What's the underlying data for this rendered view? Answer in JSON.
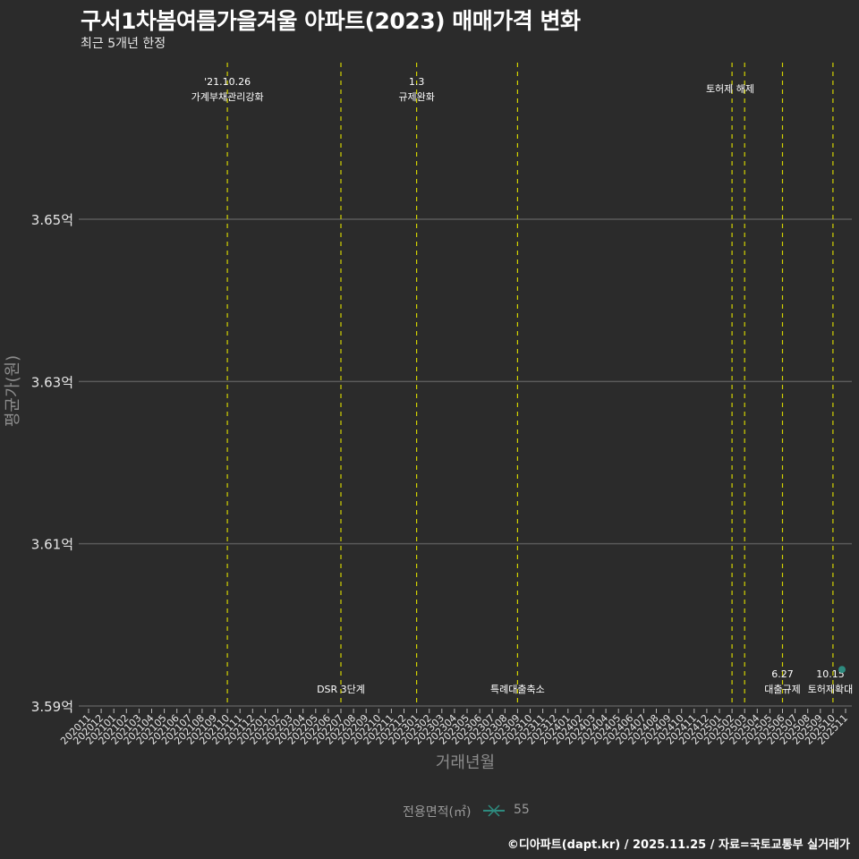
{
  "title": "구서1차봄여름가을겨울 아파트(2023) 매매가격 변화",
  "subtitle": "최근 5개년 한정",
  "caption": "©디아파트(dapt.kr) / 2025.11.25 / 자료=국토교통부 실거래가",
  "legend": {
    "title": "전용면적(㎡)",
    "items": [
      {
        "label": "55",
        "color": "#2e8b7f"
      }
    ]
  },
  "colors": {
    "background": "#2b2b2b",
    "grid": "#5a5a5a",
    "event_line": "#d4d400",
    "series": "#2e8b7f"
  },
  "chart_data": {
    "type": "line",
    "title": "구서1차봄여름가을겨울 아파트(2023) 매매가격 변화",
    "subtitle": "최근 5개년 한정",
    "xlabel": "거래년월",
    "ylabel": "평균가(원)",
    "ylim": [
      3.59,
      3.66
    ],
    "y_ticks": [
      "3.59억",
      "3.61억",
      "3.63억",
      "3.65억"
    ],
    "y_tick_values": [
      3.59,
      3.61,
      3.63,
      3.65
    ],
    "grid": true,
    "legend_position": "bottom",
    "categories": [
      "202011",
      "202012",
      "202101",
      "202102",
      "202103",
      "202104",
      "202105",
      "202106",
      "202107",
      "202108",
      "202109",
      "202110",
      "202111",
      "202112",
      "202201",
      "202202",
      "202203",
      "202204",
      "202205",
      "202206",
      "202207",
      "202208",
      "202209",
      "202210",
      "202211",
      "202212",
      "202301",
      "202302",
      "202303",
      "202304",
      "202305",
      "202306",
      "202307",
      "202308",
      "202309",
      "202310",
      "202311",
      "202312",
      "202401",
      "202402",
      "202403",
      "202404",
      "202405",
      "202406",
      "202407",
      "202408",
      "202409",
      "202410",
      "202411",
      "202412",
      "202501",
      "202502",
      "202503",
      "202504",
      "202505",
      "202506",
      "202507",
      "202508",
      "202509",
      "202510",
      "202511"
    ],
    "series": [
      {
        "name": "55",
        "points": [
          {
            "x": "202511",
            "y": 3.5945
          }
        ]
      }
    ],
    "events": [
      {
        "x": "202110",
        "line1": "'21.10.26",
        "line2": "가계부채관리강화",
        "position": "top"
      },
      {
        "x": "202207",
        "line1": "",
        "line2": "DSR 3단계",
        "position": "bottom"
      },
      {
        "x": "202301",
        "line1": "1.3",
        "line2": "규제완화",
        "position": "top"
      },
      {
        "x": "202309",
        "line1": "",
        "line2": "특례대출축소",
        "position": "bottom"
      },
      {
        "x": "202502",
        "line1": "",
        "line2": "토허제 해제",
        "position": "top"
      },
      {
        "x": "202503",
        "line1": "",
        "line2": "",
        "position": "top"
      },
      {
        "x": "202506",
        "line1": "6.27",
        "line2": "대출규제",
        "position": "bottom"
      },
      {
        "x": "202510",
        "line1": "10.15",
        "line2": "토허제확대",
        "position": "bottom"
      }
    ]
  }
}
